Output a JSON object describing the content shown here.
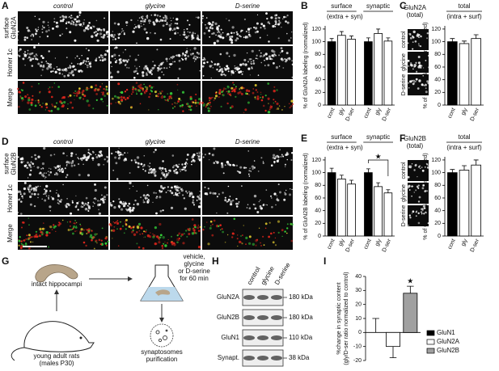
{
  "microscopy": [
    {
      "letter": "A",
      "columns": [
        "control",
        "glycine",
        "D-serine"
      ],
      "rows": [
        [
          "surface",
          "GluN2A"
        ],
        [
          "Homer 1c"
        ],
        [
          "Merge"
        ]
      ]
    },
    {
      "letter": "D",
      "columns": [
        "control",
        "glycine",
        "D-serine"
      ],
      "rows": [
        [
          "surface",
          "GluN2B"
        ],
        [
          "Homer 1c"
        ],
        [
          "Merge"
        ]
      ]
    }
  ],
  "chart_data": [
    {
      "type": "bar",
      "panel": "B",
      "ylabel": [
        "% of GluN2A labeling (normalized)"
      ],
      "ylim": [
        0,
        125
      ],
      "yticks": [
        0,
        20,
        40,
        60,
        80,
        100,
        120
      ],
      "colors": [
        "#000000",
        "#ffffff",
        "#ffffff"
      ],
      "groups": [
        {
          "label": "surface",
          "sublabel": "(extra + syn)",
          "categories": [
            "cont",
            "gly",
            "D-ser"
          ],
          "values": [
            100,
            110,
            104
          ],
          "errors": [
            5,
            6,
            5
          ]
        },
        {
          "label": "synaptic",
          "categories": [
            "cont",
            "gly",
            "D-ser"
          ],
          "values": [
            100,
            113,
            101
          ],
          "errors": [
            6,
            7,
            5
          ]
        }
      ]
    },
    {
      "type": "bar",
      "panel": "C",
      "ylabel": [
        "% of GluN2A labeling (normalized)"
      ],
      "ylim": [
        0,
        125
      ],
      "yticks": [
        0,
        20,
        40,
        60,
        80,
        100,
        120
      ],
      "colors": [
        "#000000",
        "#ffffff",
        "#ffffff"
      ],
      "images": {
        "title": [
          "GluN2A",
          "(total)"
        ],
        "rows": [
          "control",
          "glycine",
          "D-serine"
        ]
      },
      "groups": [
        {
          "label": "total",
          "sublabel": "(intra + surf)",
          "categories": [
            "cont",
            "gly",
            "D-ser"
          ],
          "values": [
            100,
            97,
            105
          ],
          "errors": [
            5,
            4,
            6
          ]
        }
      ]
    },
    {
      "type": "bar",
      "panel": "E",
      "ylabel": [
        "% of GluN2B labeling (normalized)"
      ],
      "ylim": [
        0,
        125
      ],
      "yticks": [
        0,
        20,
        40,
        60,
        80,
        100,
        120
      ],
      "colors": [
        "#000000",
        "#ffffff",
        "#ffffff"
      ],
      "groups": [
        {
          "label": "surface",
          "sublabel": "(extra + syn)",
          "categories": [
            "cont",
            "gly",
            "D-ser"
          ],
          "values": [
            100,
            90,
            82
          ],
          "errors": [
            7,
            6,
            6
          ]
        },
        {
          "label": "synaptic",
          "categories": [
            "cont",
            "gly",
            "D-ser"
          ],
          "values": [
            100,
            78,
            68
          ],
          "errors": [
            6,
            6,
            5
          ]
        }
      ],
      "annotations": [
        {
          "text": "★",
          "group": 1,
          "from": 0,
          "to": 2
        }
      ]
    },
    {
      "type": "bar",
      "panel": "F",
      "ylabel": [
        "% of GluN2B labeling (normalized)"
      ],
      "ylim": [
        0,
        125
      ],
      "yticks": [
        0,
        20,
        40,
        60,
        80,
        100,
        120
      ],
      "colors": [
        "#000000",
        "#ffffff",
        "#ffffff"
      ],
      "images": {
        "title": [
          "GluN2B",
          "(total)"
        ],
        "rows": [
          "control",
          "glycine",
          "D-serine"
        ]
      },
      "groups": [
        {
          "label": "total",
          "sublabel": "(intra + surf)",
          "categories": [
            "cont",
            "gly",
            "D-ser"
          ],
          "values": [
            100,
            104,
            112
          ],
          "errors": [
            5,
            7,
            8
          ]
        }
      ]
    },
    {
      "type": "bar",
      "panel": "I",
      "ylabel": [
        "%change in synaptic content",
        "(gly/D-ser ratio normalized to control)"
      ],
      "ylim": [
        -20,
        40
      ],
      "yticks": [
        -20,
        -10,
        0,
        10,
        20,
        30,
        40
      ],
      "colors": [
        "#000000",
        "#ffffff",
        "#a0a0a0"
      ],
      "legend": true,
      "groups": [
        {
          "categories": [
            "GluN1",
            "GluN2A",
            "GluN2B"
          ],
          "values": [
            0,
            -10,
            28
          ],
          "errors": [
            10,
            8,
            5
          ]
        }
      ],
      "annotations": [
        {
          "text": "★",
          "group": 0,
          "from": 2,
          "to": 2
        }
      ]
    }
  ],
  "schematic": {
    "letter": "G",
    "labels": [
      "intact hippocampi",
      "young adult rats",
      "(males P30)",
      "vehicle,",
      "glycine",
      "or D-serine",
      "for 60 min",
      "synaptosomes",
      "purification"
    ]
  },
  "blot": {
    "letter": "H",
    "columns": [
      "control",
      "glycine",
      "D-serine"
    ],
    "rows": [
      "GluN2A",
      "GluN2B",
      "GluN1",
      "Synapt."
    ],
    "sizes": [
      "180 kDa",
      "180 kDa",
      "110 kDa",
      "38 kDa"
    ]
  }
}
